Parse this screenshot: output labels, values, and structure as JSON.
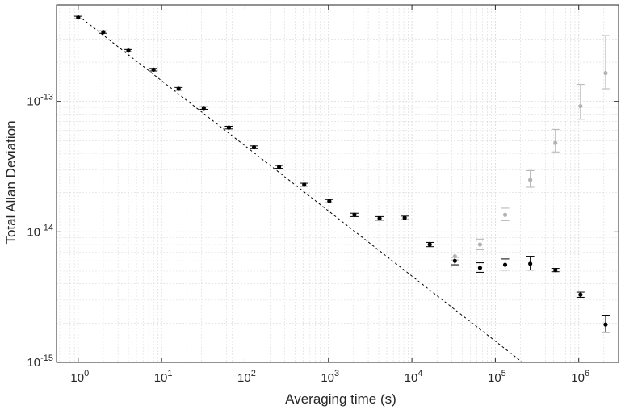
{
  "chart_data": {
    "type": "scatter",
    "xlabel": "Averaging time (s)",
    "ylabel": "Total Allan Deviation",
    "xscale": "log",
    "yscale": "log",
    "xlim": [
      0.55,
      3000000
    ],
    "ylim": [
      1e-15,
      5.5e-13
    ],
    "grid": true,
    "x_ticks": [
      {
        "value": 1,
        "base": "10",
        "exp": "0"
      },
      {
        "value": 10,
        "base": "10",
        "exp": "1"
      },
      {
        "value": 100,
        "base": "10",
        "exp": "2"
      },
      {
        "value": 1000,
        "base": "10",
        "exp": "3"
      },
      {
        "value": 10000,
        "base": "10",
        "exp": "4"
      },
      {
        "value": 100000,
        "base": "10",
        "exp": "5"
      },
      {
        "value": 1000000,
        "base": "10",
        "exp": "6"
      }
    ],
    "y_ticks": [
      {
        "value": 1e-15,
        "base": "10",
        "exp": "-15"
      },
      {
        "value": 1e-14,
        "base": "10",
        "exp": "-14"
      },
      {
        "value": 1e-13,
        "base": "10",
        "exp": "-13"
      }
    ],
    "colors": {
      "black_series": "#000000",
      "gray_series": "#b3b3b3",
      "fit_line": "#000000",
      "grid": "#d9d9d9",
      "axes": "#262626"
    },
    "series": [
      {
        "style": "black",
        "points": [
          {
            "x": 1,
            "y": 4.4e-13,
            "lo": 4.3e-13,
            "hi": 4.5e-13
          },
          {
            "x": 2,
            "y": 3.4e-13,
            "lo": 3.33e-13,
            "hi": 3.47e-13
          },
          {
            "x": 4,
            "y": 2.45e-13,
            "lo": 2.4e-13,
            "hi": 2.5e-13
          },
          {
            "x": 8,
            "y": 1.75e-13,
            "lo": 1.71e-13,
            "hi": 1.79e-13
          },
          {
            "x": 16,
            "y": 1.25e-13,
            "lo": 1.22e-13,
            "hi": 1.28e-13
          },
          {
            "x": 32,
            "y": 8.9e-14,
            "lo": 8.7e-14,
            "hi": 9.1e-14
          },
          {
            "x": 64,
            "y": 6.3e-14,
            "lo": 6.15e-14,
            "hi": 6.45e-14
          },
          {
            "x": 128,
            "y": 4.45e-14,
            "lo": 4.34e-14,
            "hi": 4.56e-14
          },
          {
            "x": 256,
            "y": 3.15e-14,
            "lo": 3.07e-14,
            "hi": 3.23e-14
          },
          {
            "x": 512,
            "y": 2.3e-14,
            "lo": 2.24e-14,
            "hi": 2.36e-14
          },
          {
            "x": 1024,
            "y": 1.72e-14,
            "lo": 1.67e-14,
            "hi": 1.77e-14
          },
          {
            "x": 2048,
            "y": 1.35e-14,
            "lo": 1.31e-14,
            "hi": 1.39e-14
          },
          {
            "x": 4096,
            "y": 1.27e-14,
            "lo": 1.23e-14,
            "hi": 1.31e-14
          },
          {
            "x": 8192,
            "y": 1.28e-14,
            "lo": 1.24e-14,
            "hi": 1.32e-14
          },
          {
            "x": 16384,
            "y": 8e-15,
            "lo": 7.7e-15,
            "hi": 8.3e-15
          },
          {
            "x": 32768,
            "y": 6e-15,
            "lo": 5.6e-15,
            "hi": 6.4e-15
          },
          {
            "x": 65536,
            "y": 5.3e-15,
            "lo": 4.9e-15,
            "hi": 5.8e-15
          },
          {
            "x": 131072,
            "y": 5.6e-15,
            "lo": 5.1e-15,
            "hi": 6.2e-15
          },
          {
            "x": 262144,
            "y": 5.7e-15,
            "lo": 5.1e-15,
            "hi": 6.5e-15
          },
          {
            "x": 524288,
            "y": 5.1e-15,
            "lo": 4.95e-15,
            "hi": 5.25e-15
          },
          {
            "x": 1048576,
            "y": 3.3e-15,
            "lo": 3.15e-15,
            "hi": 3.45e-15
          },
          {
            "x": 2097152,
            "y": 1.95e-15,
            "lo": 1.7e-15,
            "hi": 2.3e-15
          }
        ]
      },
      {
        "style": "gray",
        "points": [
          {
            "x": 32768,
            "y": 6.5e-15,
            "lo": 6.1e-15,
            "hi": 6.9e-15
          },
          {
            "x": 65536,
            "y": 8e-15,
            "lo": 7.3e-15,
            "hi": 8.8e-15
          },
          {
            "x": 131072,
            "y": 1.35e-14,
            "lo": 1.22e-14,
            "hi": 1.52e-14
          },
          {
            "x": 262144,
            "y": 2.5e-14,
            "lo": 2.2e-14,
            "hi": 2.95e-14
          },
          {
            "x": 524288,
            "y": 4.8e-14,
            "lo": 4.1e-14,
            "hi": 6.1e-14
          },
          {
            "x": 1048576,
            "y": 9.2e-14,
            "lo": 7.3e-14,
            "hi": 1.35e-13
          },
          {
            "x": 2097152,
            "y": 1.65e-13,
            "lo": 1.25e-13,
            "hi": 3.2e-13
          }
        ]
      }
    ],
    "fit_line": {
      "style": "dashed",
      "from": {
        "x": 1,
        "y": 4.55e-13
      },
      "to": {
        "x": 250000,
        "y": 9.2e-16
      }
    }
  }
}
